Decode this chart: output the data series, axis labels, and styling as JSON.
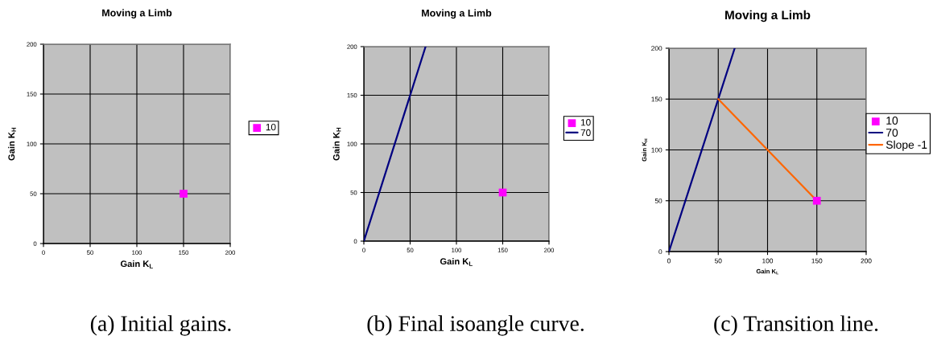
{
  "chart_data": [
    {
      "type": "scatter",
      "title": "Moving a Limb",
      "xlabel": "Gain K$_{L}$",
      "ylabel": "Gain K$_{H}$",
      "xlim": [
        0,
        200
      ],
      "ylim": [
        0,
        200
      ],
      "xticks": [
        0,
        50,
        100,
        150,
        200
      ],
      "yticks": [
        0,
        50,
        100,
        150,
        200
      ],
      "grid": true,
      "legend": "right",
      "series": [
        {
          "name": "10",
          "type": "scatter",
          "marker": "square",
          "color": "#ff00ff",
          "x": [
            150
          ],
          "values": [
            50
          ]
        }
      ],
      "annotations": [
        "(a) Initial gains."
      ]
    },
    {
      "type": "scatter",
      "title": "Moving a Limb",
      "xlabel": "Gain K$_{L}$",
      "ylabel": "Gain K$_{H}$",
      "xlim": [
        0,
        200
      ],
      "ylim": [
        0,
        200
      ],
      "xticks": [
        0,
        50,
        100,
        150,
        200
      ],
      "yticks": [
        0,
        50,
        100,
        150,
        200
      ],
      "grid": true,
      "legend": "right",
      "series": [
        {
          "name": "10",
          "type": "scatter",
          "marker": "square",
          "color": "#ff00ff",
          "x": [
            150
          ],
          "values": [
            50
          ]
        },
        {
          "name": "70",
          "type": "line",
          "color": "#000080",
          "x": [
            0,
            66.7
          ],
          "values": [
            0,
            200
          ]
        }
      ],
      "annotations": [
        "(b) Final isoangle curve."
      ]
    },
    {
      "type": "scatter",
      "title": "Moving a Limb",
      "xlabel": "Gain K$_{L}$",
      "ylabel": "Gain K$_{H}$",
      "xlim": [
        0,
        200
      ],
      "ylim": [
        0,
        200
      ],
      "xticks": [
        0,
        50,
        100,
        150,
        200
      ],
      "yticks": [
        0,
        50,
        100,
        150,
        200
      ],
      "grid": true,
      "legend": "right",
      "series": [
        {
          "name": "10",
          "type": "scatter",
          "marker": "square",
          "color": "#ff00ff",
          "x": [
            150
          ],
          "values": [
            50
          ]
        },
        {
          "name": "70",
          "type": "line",
          "color": "#000080",
          "x": [
            0,
            66.7
          ],
          "values": [
            0,
            200
          ]
        },
        {
          "name": "Slope -1",
          "type": "line",
          "color": "#ff6600",
          "x": [
            50,
            150
          ],
          "values": [
            150,
            50
          ]
        }
      ],
      "annotations": [
        "(c) Transition line."
      ]
    }
  ]
}
